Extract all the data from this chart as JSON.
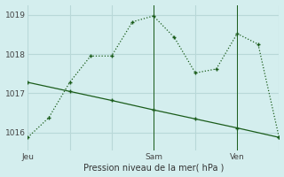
{
  "background_color": "#d4eeee",
  "grid_color": "#b8d8d8",
  "line_color": "#1a5c1a",
  "line1_dotted": {
    "x": [
      0,
      1,
      2,
      3,
      4,
      5,
      6,
      7,
      8,
      9,
      10,
      11,
      12
    ],
    "y": [
      1015.88,
      1016.38,
      1017.28,
      1017.95,
      1017.95,
      1018.82,
      1018.97,
      1018.42,
      1017.52,
      1017.62,
      1018.52,
      1018.25,
      1015.88
    ]
  },
  "line2_solid": {
    "x": [
      0,
      2,
      4,
      6,
      8,
      10,
      12
    ],
    "y": [
      1017.28,
      1017.05,
      1016.82,
      1016.58,
      1016.35,
      1016.12,
      1015.88
    ]
  },
  "xtick_positions": [
    0,
    6,
    10
  ],
  "xtick_labels": [
    "Jeu",
    "Sam",
    "Ven"
  ],
  "ytick_positions": [
    1016,
    1017,
    1018,
    1019
  ],
  "ytick_labels": [
    "1016",
    "1017",
    "1018",
    "1019"
  ],
  "ylim": [
    1015.55,
    1019.25
  ],
  "xlim": [
    0,
    12
  ],
  "xlabel": "Pression niveau de la mer( hPa )",
  "vline_positions": [
    6,
    10
  ],
  "grid_x_positions": [
    0,
    2,
    4,
    6,
    8,
    10,
    12
  ]
}
